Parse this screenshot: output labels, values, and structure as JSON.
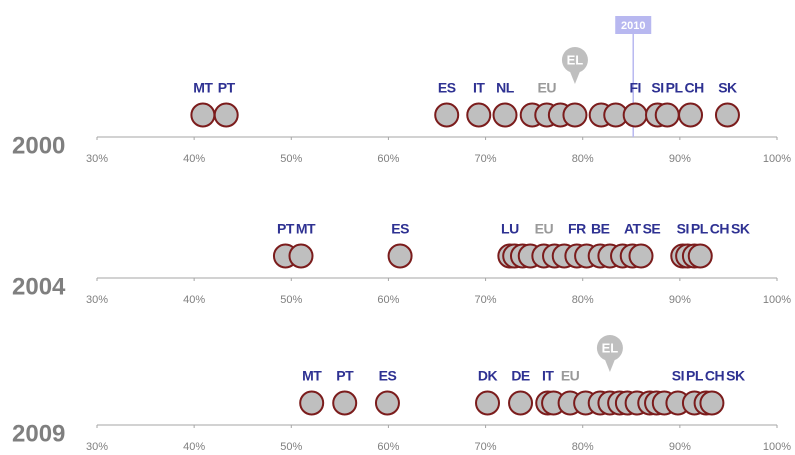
{
  "chart_data": [
    {
      "type": "dot",
      "title": "2000",
      "xlim": [
        30,
        100
      ],
      "xticks": [
        {
          "value": 30,
          "label": "30%"
        },
        {
          "value": 40,
          "label": "40%"
        },
        {
          "value": 50,
          "label": "50%"
        },
        {
          "value": 60,
          "label": "60%"
        },
        {
          "value": 70,
          "label": "70%"
        },
        {
          "value": 80,
          "label": "80%"
        },
        {
          "value": 90,
          "label": "90%"
        },
        {
          "value": 100,
          "label": "100%"
        }
      ],
      "categories": [
        "MT",
        "PT",
        "ES",
        "IT",
        "NL",
        null,
        "EU",
        null,
        "EL",
        null,
        null,
        "FI",
        "SI",
        "PL",
        "CH",
        "SK"
      ],
      "values": [
        40.9,
        43.3,
        66.0,
        69.3,
        72.0,
        74.8,
        76.3,
        77.7,
        79.2,
        81.9,
        83.4,
        85.4,
        87.7,
        88.7,
        91.1,
        94.9
      ],
      "callout": "EL",
      "muted": "EU",
      "annotation": {
        "label": "2010",
        "value": 85.2
      }
    },
    {
      "type": "dot",
      "title": "2004",
      "xlim": [
        30,
        100
      ],
      "xticks": [
        {
          "value": 30,
          "label": "30%"
        },
        {
          "value": 40,
          "label": "40%"
        },
        {
          "value": 50,
          "label": "50%"
        },
        {
          "value": 60,
          "label": "60%"
        },
        {
          "value": 70,
          "label": "70%"
        },
        {
          "value": 80,
          "label": "80%"
        },
        {
          "value": 90,
          "label": "90%"
        },
        {
          "value": 100,
          "label": "100%"
        }
      ],
      "categories": [
        "PT",
        "MT",
        "ES",
        "LU",
        null,
        null,
        null,
        "EU",
        null,
        null,
        "FR",
        null,
        "BE",
        null,
        null,
        "AT",
        "SE",
        "SI",
        "PL",
        "CH",
        "SK"
      ],
      "values": [
        49.4,
        51.0,
        61.2,
        72.5,
        73.0,
        73.8,
        74.6,
        76.0,
        77.1,
        78.1,
        79.4,
        80.4,
        81.8,
        82.8,
        84.1,
        85.1,
        86.0,
        90.3,
        90.8,
        91.5,
        92.1
      ],
      "muted": "EU"
    },
    {
      "type": "dot",
      "title": "2009",
      "xlim": [
        30,
        100
      ],
      "xticks": [
        {
          "value": 30,
          "label": "30%"
        },
        {
          "value": 40,
          "label": "40%"
        },
        {
          "value": 50,
          "label": "50%"
        },
        {
          "value": 60,
          "label": "60%"
        },
        {
          "value": 70,
          "label": "70%"
        },
        {
          "value": 80,
          "label": "80%"
        },
        {
          "value": 90,
          "label": "90%"
        },
        {
          "value": 100,
          "label": "100%"
        }
      ],
      "categories": [
        "MT",
        "PT",
        "ES",
        "DK",
        "DE",
        "IT",
        null,
        "EU",
        null,
        null,
        "EL",
        null,
        null,
        null,
        null,
        null,
        null,
        "SI",
        "PL",
        "CH",
        "SK"
      ],
      "values": [
        52.1,
        55.5,
        59.9,
        70.2,
        73.6,
        76.4,
        77.0,
        78.7,
        80.3,
        81.8,
        82.8,
        83.8,
        84.6,
        85.6,
        86.9,
        87.6,
        88.4,
        89.8,
        91.5,
        92.7,
        93.3
      ],
      "callout": "EL",
      "muted": "EU"
    }
  ]
}
